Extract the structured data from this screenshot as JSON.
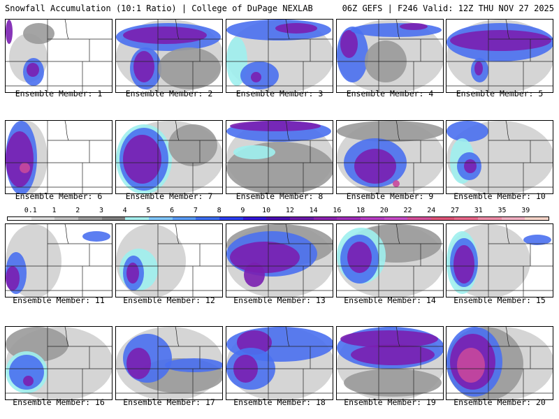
{
  "header": {
    "left_title": "Snowfall Accumulation (10:1 Ratio) | College of DuPage NEXLAB",
    "right_title": "06Z GEFS | F246 Valid: 12Z THU NOV 27 2025"
  },
  "colorbar": {
    "labels": [
      "0.1",
      "1",
      "2",
      "3",
      "4",
      "5",
      "6",
      "7",
      "8",
      "9",
      "10",
      "12",
      "14",
      "16",
      "18",
      "20",
      "22",
      "24",
      "27",
      "31",
      "35",
      "39"
    ],
    "colors": [
      "#ffffff",
      "#dddddd",
      "#c2c2c2",
      "#9c9c9c",
      "#808080",
      "#a6f0ef",
      "#82c8ff",
      "#5a9cf5",
      "#3d6ef0",
      "#2c3ff0",
      "#3317d6",
      "#4a0fb0",
      "#6b1aa8",
      "#8b23b0",
      "#a02fba",
      "#b83fc4",
      "#c84ec8",
      "#d4519a",
      "#dd5478",
      "#e8688a",
      "#ee8ea8",
      "#f2b0c2",
      "#f5d4c8"
    ]
  },
  "panels": [
    {
      "caption": "Ensemble Member: 1"
    },
    {
      "caption": "Ensemble Member: 2"
    },
    {
      "caption": "Ensemble Member: 3"
    },
    {
      "caption": "Ensemble Member: 4"
    },
    {
      "caption": "Ensemble Member: 5"
    },
    {
      "caption": "Ensemble Member: 6"
    },
    {
      "caption": "Ensemble Member: 7"
    },
    {
      "caption": "Ensemble Member: 8"
    },
    {
      "caption": "Ensemble Member: 9"
    },
    {
      "caption": "Ensemble Member: 10"
    },
    {
      "caption": "Ensemble Member: 11"
    },
    {
      "caption": "Ensemble Member: 12"
    },
    {
      "caption": "Ensemble Member: 13"
    },
    {
      "caption": "Ensemble Member: 14"
    },
    {
      "caption": "Ensemble Member: 15"
    },
    {
      "caption": "Ensemble Member: 16"
    },
    {
      "caption": "Ensemble Member: 17"
    },
    {
      "caption": "Ensemble Member: 18"
    },
    {
      "caption": "Ensemble Member: 19"
    },
    {
      "caption": "Ensemble Member: 20"
    }
  ]
}
